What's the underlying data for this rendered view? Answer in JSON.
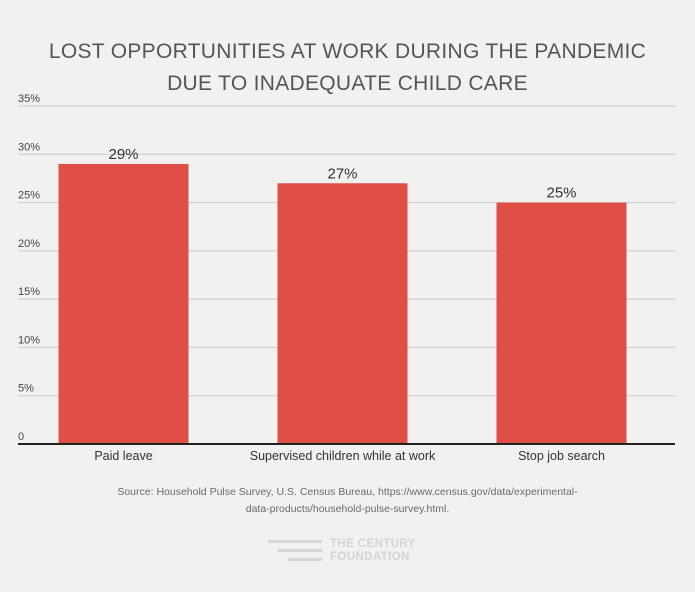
{
  "title_lines": [
    "LOST OPPORTUNITIES AT WORK DURING THE PANDEMIC",
    "DUE TO INADEQUATE CHILD CARE"
  ],
  "source_lines": [
    "Source: Household Pulse Survey, U.S. Census Bureau, https://www.census.gov/data/experimental-",
    "data-products/household-pulse-survey.html."
  ],
  "logo": {
    "line1": "THE CENTURY",
    "line2": "FOUNDATION"
  },
  "colors": {
    "bar": "#e04f45",
    "grid": "#c9c9c9",
    "axis": "#222222",
    "background": "#f1f1f0"
  },
  "chart_data": {
    "type": "bar",
    "title": "LOST OPPORTUNITIES AT WORK DURING THE PANDEMIC DUE TO INADEQUATE CHILD CARE",
    "categories": [
      "Paid leave",
      "Supervised children while at work",
      "Stop job search"
    ],
    "values": [
      29,
      27,
      25
    ],
    "data_labels": [
      "29%",
      "27%",
      "25%"
    ],
    "ylim": [
      0,
      35
    ],
    "yticks": [
      0,
      5,
      10,
      15,
      20,
      25,
      30,
      35
    ],
    "ytick_labels": [
      "0",
      "5%",
      "10%",
      "15%",
      "20%",
      "25%",
      "30%",
      "35%"
    ],
    "xlabel": "",
    "ylabel": "",
    "grid": true,
    "legend": "none"
  }
}
